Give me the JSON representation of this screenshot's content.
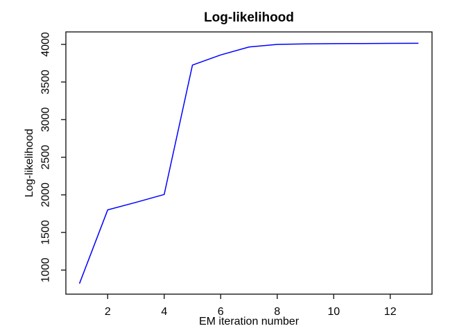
{
  "window": {
    "background_color": "#ffffff"
  },
  "chart_data": {
    "type": "line",
    "title": "Log-likelihood",
    "xlabel": "EM iteration number",
    "ylabel": "Log-likelihood",
    "x": [
      1,
      2,
      3,
      4,
      5,
      6,
      7,
      8,
      9,
      10,
      11,
      12,
      13
    ],
    "y": [
      820,
      1800,
      1900,
      2005,
      3725,
      3860,
      3965,
      4000,
      4007,
      4010,
      4012,
      4014,
      4015
    ],
    "series_name": "log-likelihood",
    "x_ticks": [
      2,
      4,
      6,
      8,
      10,
      12
    ],
    "y_ticks": [
      1000,
      1500,
      2000,
      2500,
      3000,
      3500,
      4000
    ],
    "xlim": [
      0.52,
      13.48
    ],
    "ylim": [
      680,
      4166
    ],
    "grid": false,
    "legend": "none",
    "y_tick_labels_rotated": true,
    "line_color": "#0000ff",
    "axis_color": "#1a1a1a",
    "text_color": "#000000"
  }
}
